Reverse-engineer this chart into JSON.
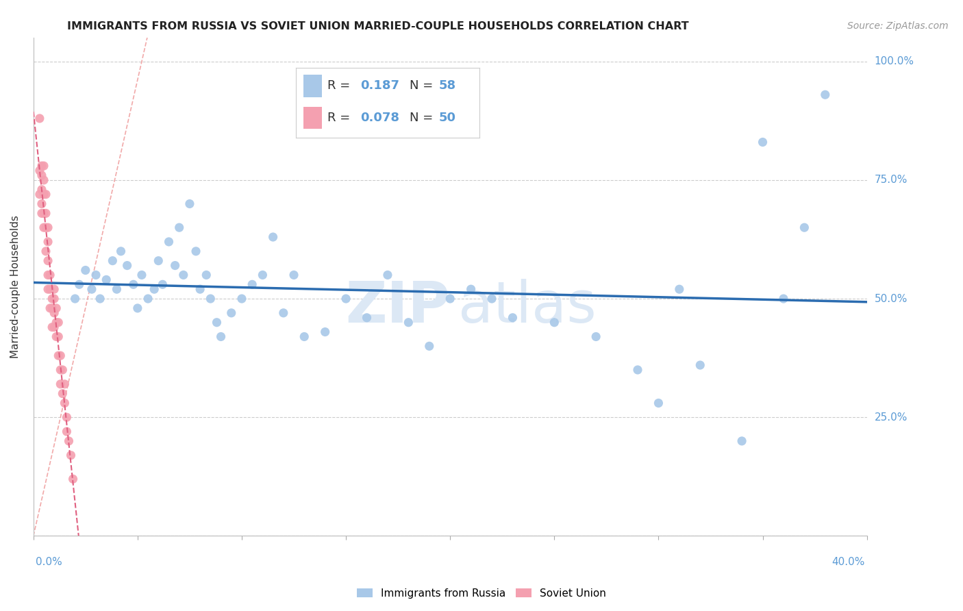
{
  "title": "IMMIGRANTS FROM RUSSIA VS SOVIET UNION MARRIED-COUPLE HOUSEHOLDS CORRELATION CHART",
  "source": "Source: ZipAtlas.com",
  "ylabel": "Married-couple Households",
  "xmin": 0.0,
  "xmax": 0.4,
  "ymin": 0.0,
  "ymax": 1.05,
  "blue_color": "#a8c8e8",
  "blue_line_color": "#2b6cb0",
  "pink_color": "#f4a0b0",
  "pink_line_color": "#e06080",
  "diag_color": "#f0a0a0",
  "ytick_vals": [
    0.0,
    0.25,
    0.5,
    0.75,
    1.0
  ],
  "ytick_labels": [
    "",
    "25.0%",
    "50.0%",
    "75.0%",
    "100.0%"
  ],
  "axis_label_color": "#5b9bd5",
  "russia_x": [
    0.02,
    0.022,
    0.025,
    0.028,
    0.03,
    0.032,
    0.035,
    0.038,
    0.04,
    0.042,
    0.045,
    0.048,
    0.05,
    0.052,
    0.055,
    0.058,
    0.06,
    0.062,
    0.065,
    0.068,
    0.07,
    0.072,
    0.075,
    0.078,
    0.08,
    0.083,
    0.085,
    0.088,
    0.09,
    0.095,
    0.1,
    0.105,
    0.11,
    0.115,
    0.12,
    0.125,
    0.13,
    0.14,
    0.15,
    0.16,
    0.17,
    0.18,
    0.19,
    0.2,
    0.21,
    0.22,
    0.23,
    0.25,
    0.27,
    0.29,
    0.3,
    0.31,
    0.32,
    0.34,
    0.35,
    0.36,
    0.37,
    0.38
  ],
  "russia_y": [
    0.5,
    0.53,
    0.56,
    0.52,
    0.55,
    0.5,
    0.54,
    0.58,
    0.52,
    0.6,
    0.57,
    0.53,
    0.48,
    0.55,
    0.5,
    0.52,
    0.58,
    0.53,
    0.62,
    0.57,
    0.65,
    0.55,
    0.7,
    0.6,
    0.52,
    0.55,
    0.5,
    0.45,
    0.42,
    0.47,
    0.5,
    0.53,
    0.55,
    0.63,
    0.47,
    0.55,
    0.42,
    0.43,
    0.5,
    0.46,
    0.55,
    0.45,
    0.4,
    0.5,
    0.52,
    0.5,
    0.46,
    0.45,
    0.42,
    0.35,
    0.28,
    0.52,
    0.36,
    0.2,
    0.83,
    0.5,
    0.65,
    0.93
  ],
  "soviet_x": [
    0.003,
    0.003,
    0.003,
    0.004,
    0.004,
    0.004,
    0.004,
    0.004,
    0.005,
    0.005,
    0.005,
    0.005,
    0.005,
    0.006,
    0.006,
    0.006,
    0.006,
    0.007,
    0.007,
    0.007,
    0.007,
    0.007,
    0.008,
    0.008,
    0.008,
    0.009,
    0.009,
    0.009,
    0.01,
    0.01,
    0.01,
    0.01,
    0.011,
    0.011,
    0.011,
    0.012,
    0.012,
    0.012,
    0.013,
    0.013,
    0.013,
    0.014,
    0.014,
    0.015,
    0.015,
    0.016,
    0.016,
    0.017,
    0.018,
    0.019
  ],
  "soviet_y": [
    0.88,
    0.77,
    0.72,
    0.78,
    0.76,
    0.73,
    0.7,
    0.68,
    0.78,
    0.75,
    0.72,
    0.68,
    0.65,
    0.72,
    0.68,
    0.65,
    0.6,
    0.65,
    0.62,
    0.58,
    0.55,
    0.52,
    0.55,
    0.52,
    0.48,
    0.5,
    0.48,
    0.44,
    0.52,
    0.5,
    0.47,
    0.44,
    0.48,
    0.45,
    0.42,
    0.45,
    0.42,
    0.38,
    0.38,
    0.35,
    0.32,
    0.35,
    0.3,
    0.32,
    0.28,
    0.25,
    0.22,
    0.2,
    0.17,
    0.12
  ],
  "watermark_zip_color": "#dce8f5",
  "watermark_atlas_color": "#dce8f5"
}
